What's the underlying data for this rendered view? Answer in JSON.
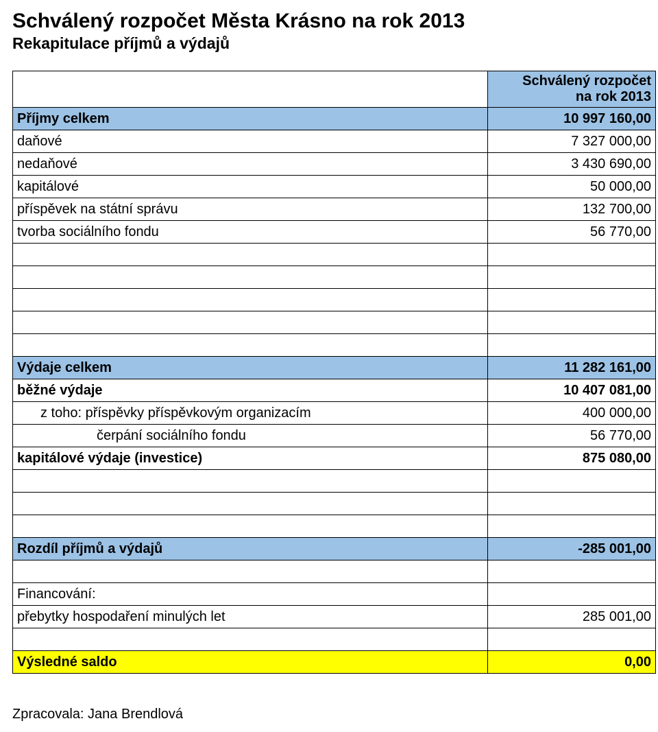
{
  "colors": {
    "header_bg": "#9cc2e5",
    "highlight_row_bg": "#9cc2e5",
    "yellow_bg": "#ffff00",
    "text": "#000000",
    "background": "#ffffff"
  },
  "title": "Schválený rozpočet Města Krásno na rok 2013",
  "subtitle": "Rekapitulace příjmů a výdajů",
  "header_line1": "Schválený rozpočet",
  "header_line2": "na rok 2013",
  "income": {
    "total_label": "Příjmy celkem",
    "total_value": "10 997 160,00",
    "rows": [
      {
        "label": "daňové",
        "value": "7 327 000,00"
      },
      {
        "label": "nedaňové",
        "value": "3 430 690,00"
      },
      {
        "label": "kapitálové",
        "value": "50 000,00"
      },
      {
        "label": "příspěvek na státní správu",
        "value": "132 700,00"
      },
      {
        "label": "tvorba sociálního fondu",
        "value": "56 770,00"
      }
    ]
  },
  "expenses": {
    "total_label": "Výdaje celkem",
    "total_value": "11 282 161,00",
    "rows": [
      {
        "label": "běžné výdaje",
        "value": "10 407 081,00",
        "bold": true
      },
      {
        "label": "z toho: příspěvky příspěvkovým organizacím",
        "value": "400 000,00",
        "indent": 1
      },
      {
        "label": "čerpání sociálního fondu",
        "value": "56 770,00",
        "indent": 2
      },
      {
        "label": "kapitálové výdaje (investice)",
        "value": "875 080,00",
        "bold": true
      }
    ]
  },
  "difference": {
    "label": "Rozdíl příjmů a výdajů",
    "value": "-285 001,00"
  },
  "financing": {
    "heading": "Financování:",
    "rows": [
      {
        "label": "přebytky hospodaření minulých let",
        "value": "285 001,00"
      }
    ]
  },
  "result": {
    "label": "Výsledné saldo",
    "value": "0,00"
  },
  "footer": "Zpracovala: Jana Brendlová"
}
